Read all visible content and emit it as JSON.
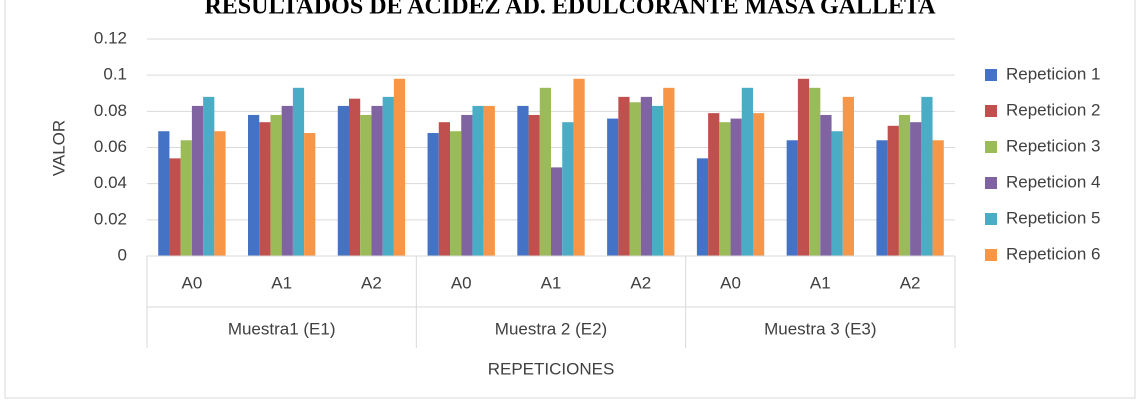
{
  "chart_data": {
    "type": "bar",
    "title": "RESULTADOS DE ACIDEZ AD. EDULCORANTE MASA GALLETA",
    "x_label": "REPETICIONES",
    "y_label": "VALOR",
    "categories": [
      "A0",
      "A1",
      "A2",
      "A0",
      "A1",
      "A2",
      "A0",
      "A1",
      "A2"
    ],
    "category_groups": [
      "Muestra1 (E1)",
      "Muestra 2 (E2)",
      "Muestra 3 (E3)"
    ],
    "series": [
      {
        "name": "Repeticion 1",
        "color": "#4472c4",
        "values": [
          0.069,
          0.078,
          0.083,
          0.068,
          0.083,
          0.076,
          0.054,
          0.064,
          0.064
        ]
      },
      {
        "name": "Repeticion 2",
        "color": "#c0504d",
        "values": [
          0.054,
          0.074,
          0.087,
          0.074,
          0.078,
          0.088,
          0.079,
          0.098,
          0.072
        ]
      },
      {
        "name": "Repeticion 3",
        "color": "#9bbb59",
        "values": [
          0.064,
          0.078,
          0.078,
          0.069,
          0.093,
          0.085,
          0.074,
          0.093,
          0.078
        ]
      },
      {
        "name": "Repeticion 4",
        "color": "#8064a2",
        "values": [
          0.083,
          0.083,
          0.083,
          0.078,
          0.049,
          0.088,
          0.076,
          0.078,
          0.074
        ]
      },
      {
        "name": "Repeticion 5",
        "color": "#4bacc6",
        "values": [
          0.088,
          0.093,
          0.088,
          0.083,
          0.074,
          0.083,
          0.093,
          0.069,
          0.088
        ]
      },
      {
        "name": "Repeticion 6",
        "color": "#f79646",
        "values": [
          0.069,
          0.068,
          0.098,
          0.083,
          0.098,
          0.093,
          0.079,
          0.088,
          0.064
        ]
      }
    ],
    "ylim": [
      0,
      0.12
    ],
    "yticks": [
      0,
      0.02,
      0.04,
      0.06,
      0.08,
      0.1,
      0.12
    ],
    "grid": true,
    "legend": "right"
  }
}
